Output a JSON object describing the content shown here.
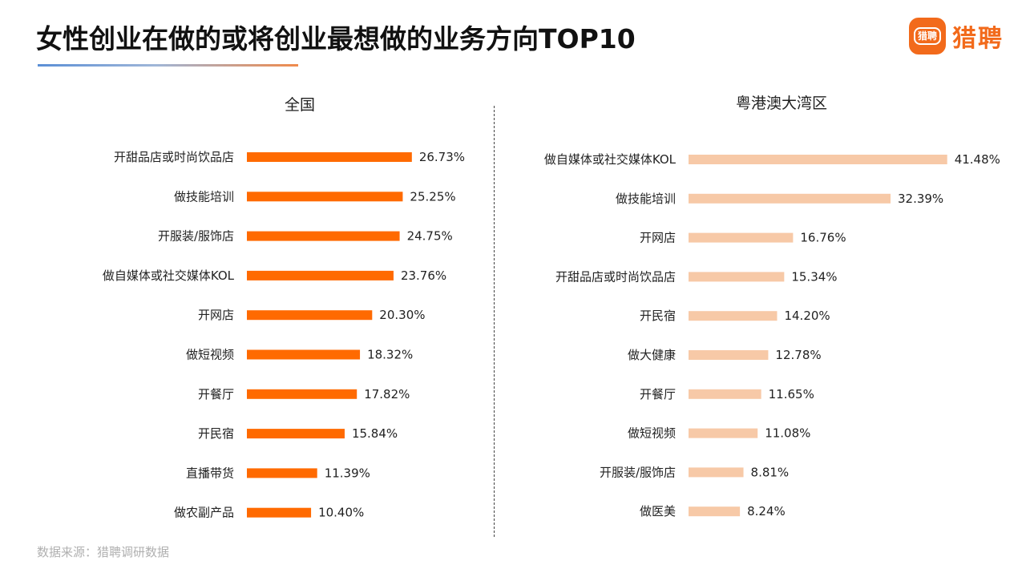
{
  "header": {
    "title": "女性创业在做的或将创业最想做的业务方向TOP10",
    "logo_badge_text": "猎聘",
    "logo_text": "猎聘"
  },
  "footer": {
    "source": "数据来源：猎聘调研数据"
  },
  "colors": {
    "national_bar": "#ff6a00",
    "gba_bar": "#f7c9a7",
    "brand": "#f26a1b"
  },
  "chart_data": [
    {
      "type": "bar",
      "orientation": "horizontal",
      "title": "全国",
      "categories": [
        "开甜品店或时尚饮品店",
        "做技能培训",
        "开服装/服饰店",
        "做自媒体或社交媒体KOL",
        "开网店",
        "做短视频",
        "开餐厅",
        "开民宿",
        "直播带货",
        "做农副产品"
      ],
      "values": [
        26.73,
        25.25,
        24.75,
        23.76,
        20.3,
        18.32,
        17.82,
        15.84,
        11.39,
        10.4
      ],
      "value_labels": [
        "26.73%",
        "25.25%",
        "24.75%",
        "23.76%",
        "20.30%",
        "18.32%",
        "17.82%",
        "15.84%",
        "11.39%",
        "10.40%"
      ],
      "color": "#ff6a00"
    },
    {
      "type": "bar",
      "orientation": "horizontal",
      "title": "粤港澳大湾区",
      "categories": [
        "做自媒体或社交媒体KOL",
        "做技能培训",
        "开网店",
        "开甜品店或时尚饮品店",
        "开民宿",
        "做大健康",
        "开餐厅",
        "做短视频",
        "开服装/服饰店",
        "做医美"
      ],
      "values": [
        41.48,
        32.39,
        16.76,
        15.34,
        14.2,
        12.78,
        11.65,
        11.08,
        8.81,
        8.24
      ],
      "value_labels": [
        "41.48%",
        "32.39%",
        "16.76%",
        "15.34%",
        "14.20%",
        "12.78%",
        "11.65%",
        "11.08%",
        "8.81%",
        "8.24%"
      ],
      "color": "#f7c9a7"
    }
  ]
}
